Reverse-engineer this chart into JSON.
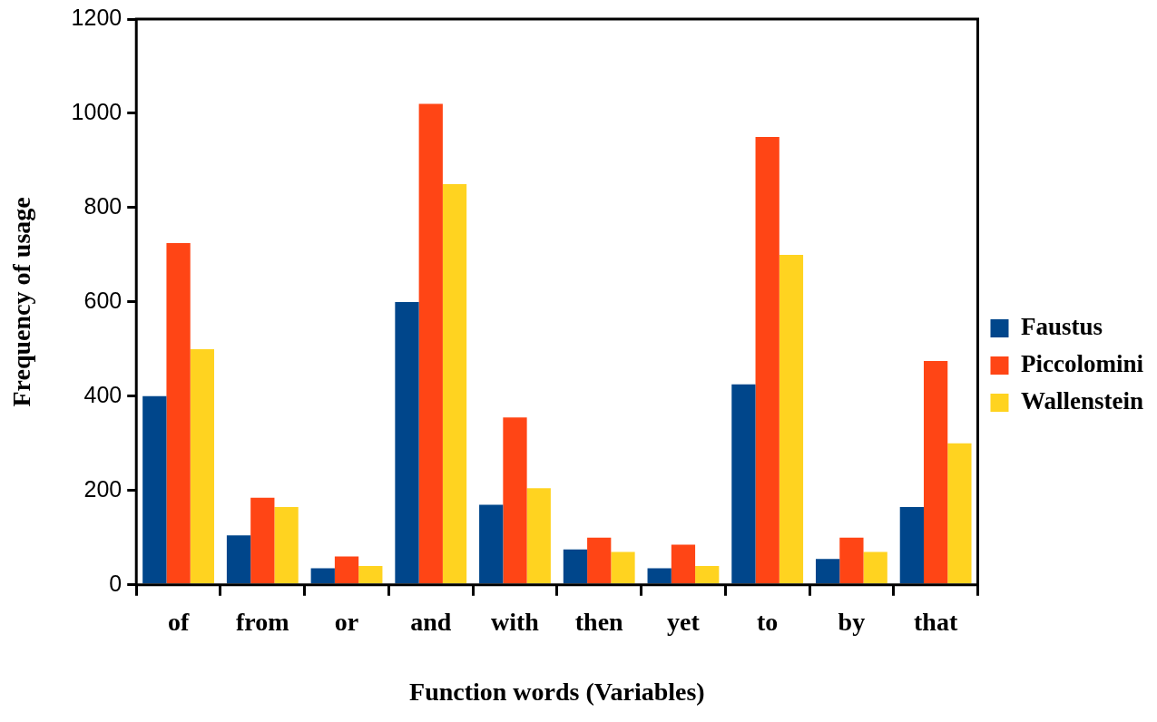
{
  "chart_data": {
    "type": "bar",
    "xlabel": "Function words (Variables)",
    "ylabel": "Frequency of usage",
    "categories": [
      "of",
      "from",
      "or",
      "and",
      "with",
      "then",
      "yet",
      "to",
      "by",
      "that"
    ],
    "series": [
      {
        "name": "Faustus",
        "color": "#00468b",
        "values": [
          400,
          105,
          35,
          600,
          170,
          75,
          35,
          425,
          55,
          165
        ]
      },
      {
        "name": "Piccolomini",
        "color": "#ff4515",
        "values": [
          725,
          185,
          60,
          1020,
          355,
          100,
          85,
          950,
          100,
          475
        ]
      },
      {
        "name": "Wallenstein",
        "color": "#ffd320",
        "values": [
          500,
          165,
          40,
          850,
          205,
          70,
          40,
          700,
          70,
          300
        ]
      }
    ],
    "ylim": [
      0,
      1200
    ],
    "yticks": [
      0,
      200,
      400,
      600,
      800,
      1000,
      1200
    ],
    "grid": false,
    "legend": "right"
  }
}
